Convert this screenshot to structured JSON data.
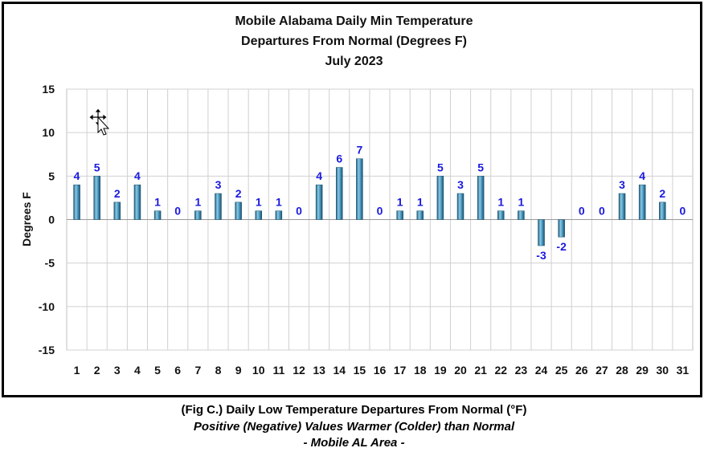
{
  "chart_data": {
    "type": "bar",
    "title": [
      "Mobile Alabama Daily Min Temperature",
      "Departures From Normal (Degrees F)",
      "July 2023"
    ],
    "xlabel": "",
    "ylabel": "Degrees F",
    "ylim": [
      -15,
      15
    ],
    "yticks": [
      15,
      10,
      5,
      0,
      -5,
      -10,
      -15
    ],
    "grid": true,
    "categories": [
      "1",
      "2",
      "3",
      "4",
      "5",
      "6",
      "7",
      "8",
      "9",
      "10",
      "11",
      "12",
      "13",
      "14",
      "15",
      "16",
      "17",
      "18",
      "19",
      "20",
      "21",
      "22",
      "23",
      "24",
      "25",
      "26",
      "27",
      "28",
      "29",
      "30",
      "31"
    ],
    "values": [
      4,
      5,
      2,
      4,
      1,
      0,
      1,
      3,
      2,
      1,
      1,
      0,
      4,
      6,
      7,
      0,
      1,
      1,
      5,
      3,
      5,
      1,
      1,
      -3,
      -2,
      0,
      0,
      3,
      4,
      2,
      0
    ],
    "bar_color": "#3f8fb5",
    "label_color": "#1a1adf"
  },
  "caption": {
    "line1": "(Fig C.) Daily Low Temperature Departures From Normal (°F)",
    "line2": "Positive (Negative) Values Warmer (Colder) than Normal",
    "line3": "- Mobile AL Area -"
  },
  "cursor_icon": "move-cursor-icon"
}
